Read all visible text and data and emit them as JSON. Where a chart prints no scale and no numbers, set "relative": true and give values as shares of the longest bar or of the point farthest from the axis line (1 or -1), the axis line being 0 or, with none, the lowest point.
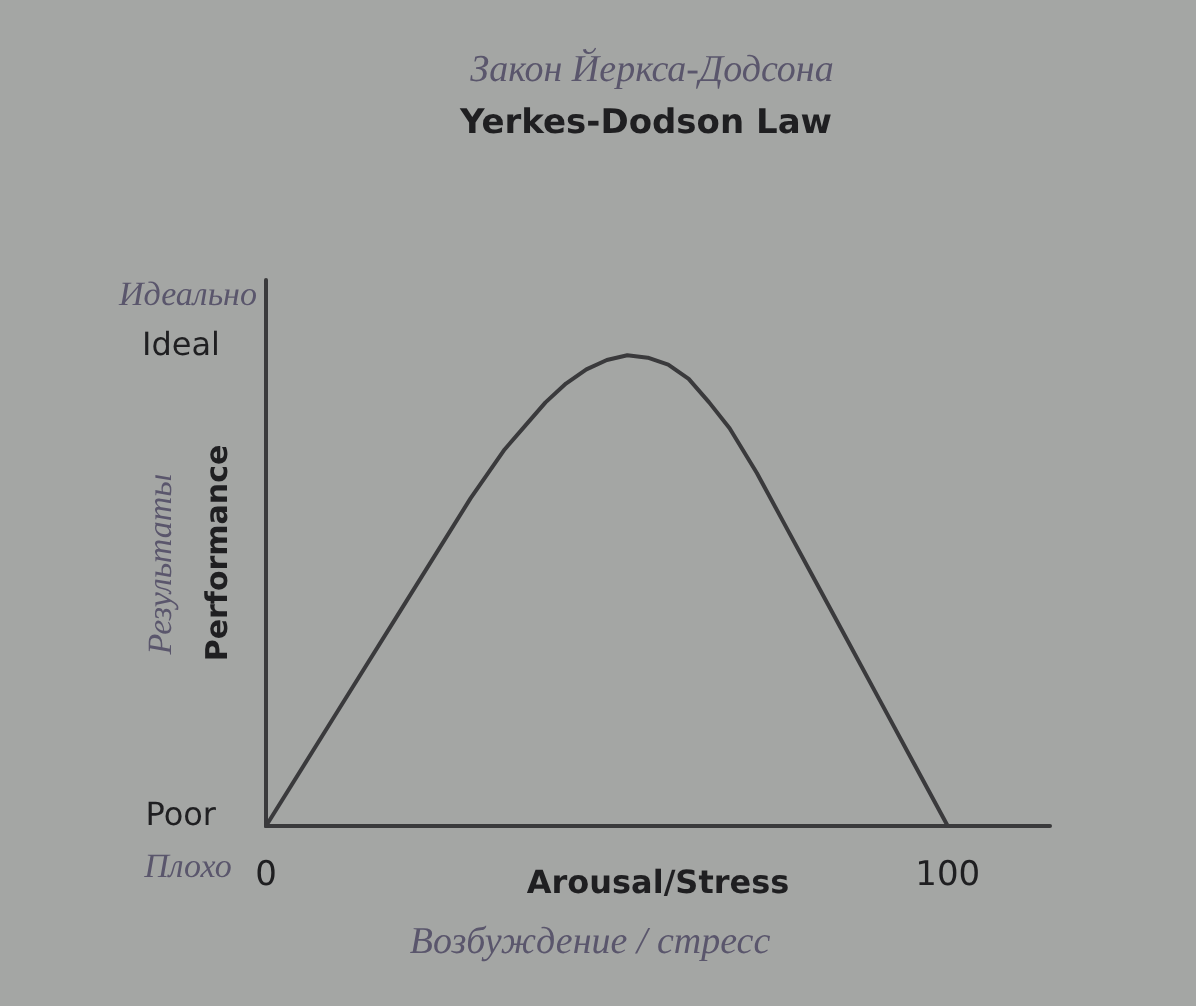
{
  "chart_data": {
    "type": "line",
    "relative": true,
    "title": "Yerkes-Dodson Law",
    "xlabel": "Arousal/Stress",
    "ylabel": "Performance",
    "x": [
      0,
      10,
      20,
      30,
      35,
      38,
      41,
      44,
      47,
      50,
      53,
      56,
      59,
      62,
      65,
      68,
      72,
      76,
      80,
      85,
      90,
      95,
      100
    ],
    "series": [
      {
        "color": "#3a3a3c",
        "values": [
          0,
          0.232,
          0.464,
          0.696,
          0.8,
          0.85,
          0.9,
          0.94,
          0.97,
          0.99,
          1,
          0.995,
          0.98,
          0.95,
          0.9,
          0.845,
          0.75,
          0.643,
          0.536,
          0.402,
          0.268,
          0.134,
          0
        ]
      }
    ],
    "xlim": [
      0,
      115
    ],
    "xticks": [
      0,
      100
    ],
    "marker": "none",
    "line_style": "solid",
    "annotations": [
      "Закон Йеркса-Додсона",
      "Идеально",
      "Ideal",
      "Результаты",
      "Poor",
      "Плохо",
      "Возбуждение / стресс"
    ]
  }
}
